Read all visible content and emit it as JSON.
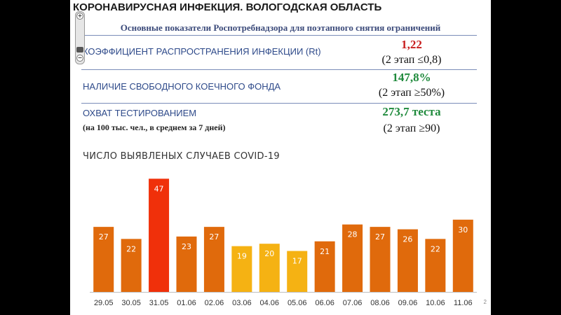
{
  "slide": {
    "title": "КОРОНАВИРУСНАЯ ИНФЕКЦИЯ. ВОЛОГОДСКАЯ ОБЛАСТЬ",
    "subtitle": "Основные показатели Роспотребнадзора для поэтапного снятия ограничений",
    "page_number": "2"
  },
  "indicators": [
    {
      "label": "КОЭФФИЦИЕНТ РАСПРОСТРАНЕНИЯ ИНФЕКЦИИ (Rt)",
      "value": "1,22",
      "value_color": "#c81e1e",
      "target": "(2 этап ≤0,8)"
    },
    {
      "label": "НАЛИЧИЕ СВОБОДНОГО КОЕЧНОГО ФОНДА",
      "value": "147,8%",
      "value_color": "#1f8a3c",
      "target": "(2 этап ≥50%)"
    },
    {
      "label": "ОХВАТ ТЕСТИРОВАНИЕМ",
      "note": "(на 100 тыс. чел., в среднем за 7 дней)",
      "value": "273,7 теста",
      "value_color": "#1f8a3c",
      "target": "(2  этап ≥90)"
    }
  ],
  "zoom_control": {
    "zoom_in_icon": "plus-icon",
    "zoom_out_icon": "minus-icon",
    "thumb_icon": "slider-thumb-icon"
  },
  "chart_data": {
    "type": "bar",
    "title": "ЧИСЛО ВЫЯВЛЕНЫХ СЛУЧАЕВ COVID-19",
    "categories": [
      "29.05",
      "30.05",
      "31.05",
      "01.06",
      "02.06",
      "03.06",
      "04.06",
      "05.06",
      "06.06",
      "07.06",
      "08.06",
      "09.06",
      "10.06",
      "11.06"
    ],
    "values": [
      27,
      22,
      47,
      23,
      27,
      19,
      20,
      17,
      21,
      28,
      27,
      26,
      22,
      30
    ],
    "bar_colors": [
      "#e06a0c",
      "#e06a0c",
      "#f0300a",
      "#e06a0c",
      "#e06a0c",
      "#f5b213",
      "#f5b213",
      "#f5b213",
      "#e06a0c",
      "#e06a0c",
      "#e06a0c",
      "#e06a0c",
      "#e06a0c",
      "#e06a0c"
    ],
    "data_labels": true,
    "ylim": [
      0,
      50
    ],
    "grid": false,
    "label_color": "#ffffff"
  }
}
